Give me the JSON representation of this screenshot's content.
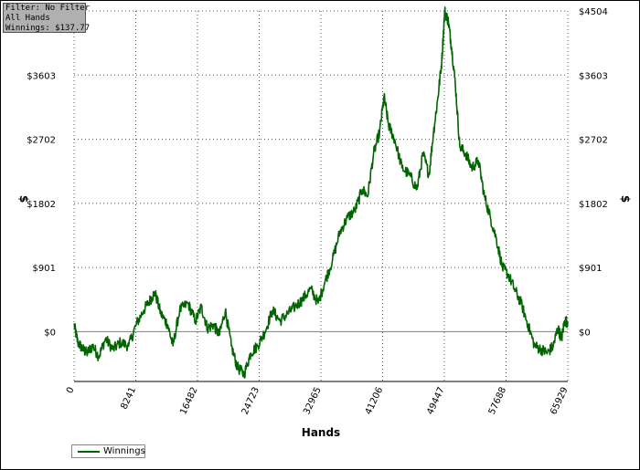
{
  "info_box": {
    "lines": [
      "Filter: No Filter",
      "All Hands",
      "Winnings: $137.77"
    ]
  },
  "legend": {
    "label": "Winnings"
  },
  "colors": {
    "series": "#006400",
    "grid": "#555555",
    "zero_line": "#808080"
  },
  "chart_data": {
    "type": "line",
    "xlabel": "Hands",
    "ylabel": "$",
    "xlim": [
      0,
      65929
    ],
    "ylim": [
      -700,
      4504
    ],
    "x_ticks": [
      0,
      8241,
      16482,
      24723,
      32965,
      41206,
      49447,
      57688,
      65929
    ],
    "x_tick_labels": [
      "0",
      "8241",
      "16482",
      "24723",
      "32965",
      "41206",
      "49447",
      "57688",
      "65929"
    ],
    "y_ticks": [
      0,
      901,
      1802,
      2702,
      3603,
      4504
    ],
    "y_tick_labels": [
      "$0",
      "$901",
      "$1802",
      "$2702",
      "$3603",
      "$4504"
    ],
    "grid": true,
    "legend_position": "bottom-left",
    "series": [
      {
        "name": "Winnings",
        "x": [
          0,
          500,
          1200,
          1700,
          2500,
          3300,
          4200,
          5200,
          6200,
          7300,
          8300,
          9300,
          10200,
          10800,
          11600,
          12500,
          13200,
          14100,
          15200,
          16200,
          17000,
          17800,
          18600,
          19400,
          20200,
          21000,
          21800,
          22700,
          23600,
          24500,
          25500,
          26500,
          27500,
          28500,
          29500,
          30500,
          31600,
          32600,
          33500,
          34500,
          35500,
          36500,
          37500,
          38500,
          39200,
          40000,
          40800,
          41400,
          42000,
          42800,
          43800,
          44800,
          45800,
          46600,
          47400,
          48000,
          48600,
          49100,
          49500,
          50000,
          50400,
          50900,
          51500,
          52300,
          53100,
          54000,
          54800,
          55600,
          56400,
          57200,
          58000,
          58800,
          59700,
          60600,
          61500,
          62400,
          63200,
          64000,
          64600,
          65100,
          65500,
          65929
        ],
        "y": [
          100,
          -150,
          -250,
          -300,
          -200,
          -350,
          -100,
          -250,
          -150,
          -200,
          100,
          300,
          450,
          550,
          250,
          100,
          -200,
          300,
          400,
          150,
          350,
          50,
          100,
          -50,
          300,
          -200,
          -500,
          -600,
          -300,
          -200,
          0,
          300,
          150,
          250,
          350,
          450,
          600,
          400,
          700,
          1000,
          1400,
          1600,
          1700,
          2000,
          1900,
          2500,
          2800,
          3300,
          2900,
          2700,
          2300,
          2200,
          2000,
          2500,
          2200,
          2800,
          3300,
          3800,
          4504,
          4350,
          4000,
          3500,
          2600,
          2500,
          2300,
          2400,
          1900,
          1600,
          1300,
          900,
          800,
          600,
          400,
          100,
          -200,
          -250,
          -300,
          -200,
          50,
          -100,
          150,
          138
        ]
      }
    ]
  }
}
